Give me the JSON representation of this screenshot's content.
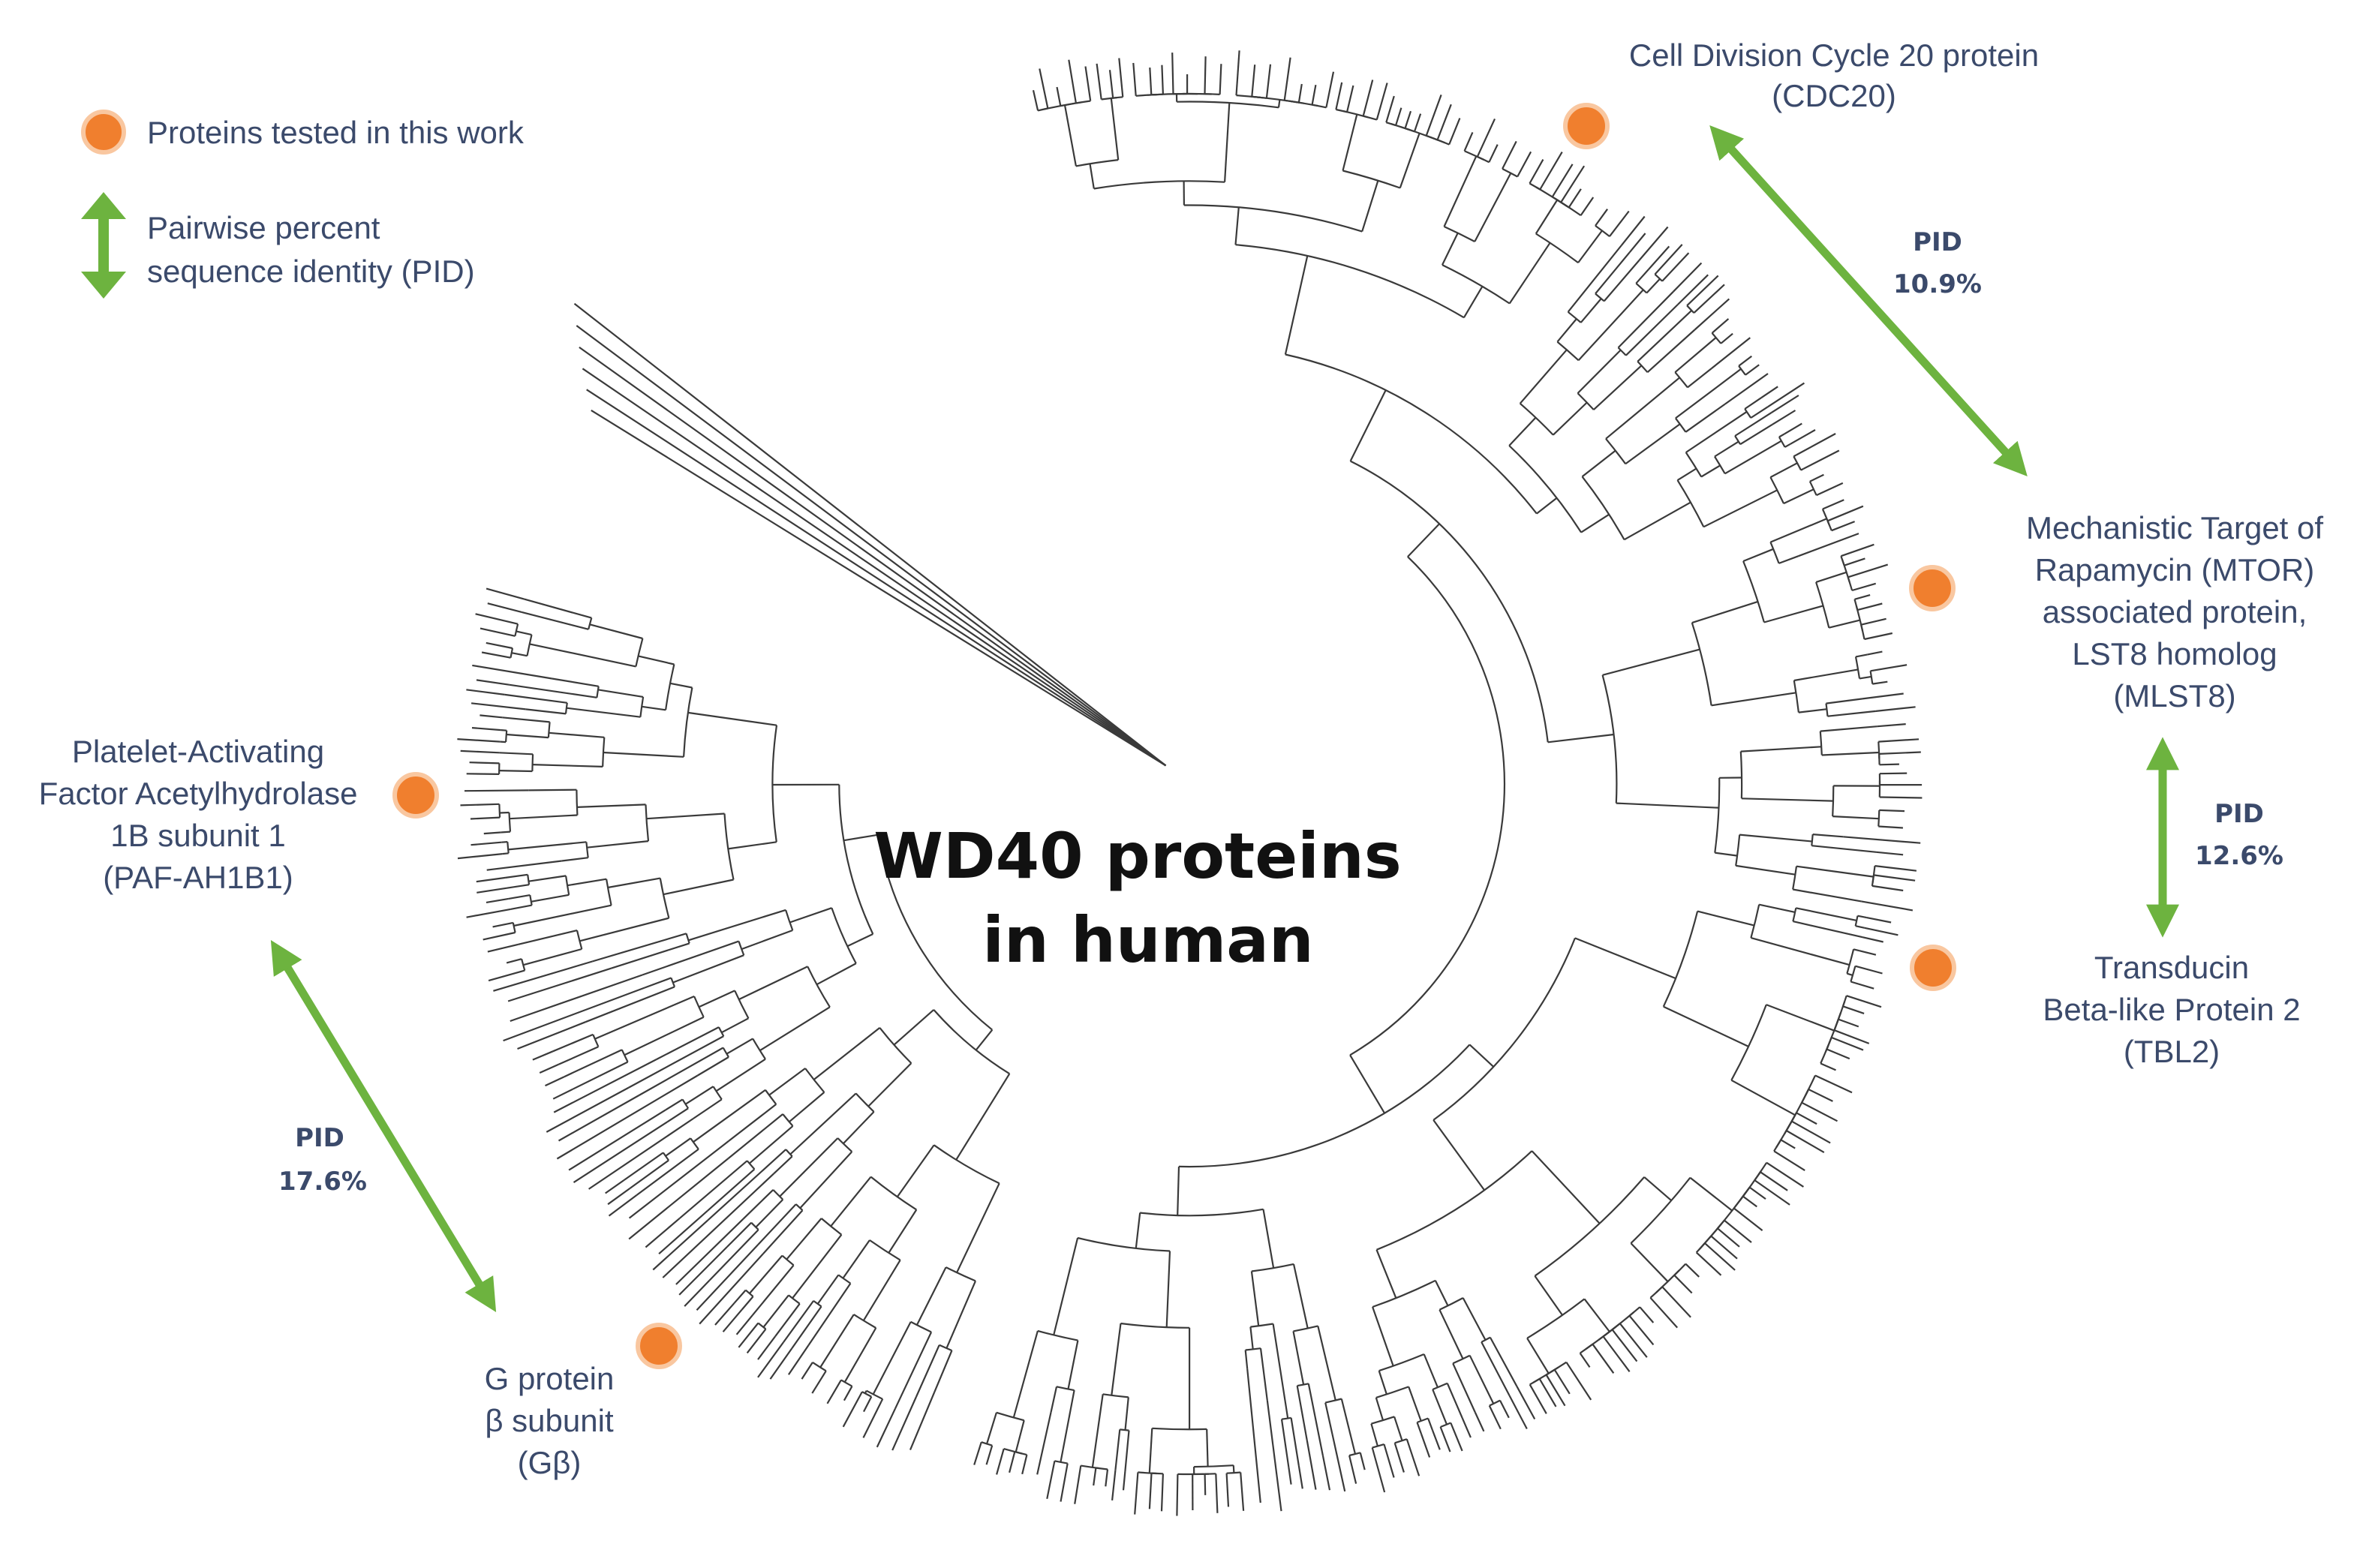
{
  "title": {
    "line1": "WD40 proteins",
    "line2": "in human"
  },
  "legend": {
    "tested_label": "Proteins tested in this work",
    "pid_label_line1": "Pairwise percent",
    "pid_label_line2": "sequence identity (PID)"
  },
  "proteins": {
    "cdc20": {
      "line1": "Cell Division Cycle 20 protein",
      "line2": "(CDC20)"
    },
    "mlst8": {
      "line1": "Mechanistic Target of",
      "line2": "Rapamycin (MTOR)",
      "line3": "associated protein,",
      "line4": "LST8 homolog",
      "line5": "(MLST8)"
    },
    "tbl2": {
      "line1": "Transducin",
      "line2": "Beta-like Protein 2",
      "line3": "(TBL2)"
    },
    "pafah1b1": {
      "line1": "Platelet-Activating",
      "line2": "Factor Acetylhydrolase",
      "line3": "1B subunit 1",
      "line4": "(PAF-AH1B1)"
    },
    "gbeta": {
      "line1": "G protein",
      "line2": "β subunit",
      "line3": "(Gβ)"
    }
  },
  "pid_pairs": {
    "cdc20_mlst8": {
      "label": "PID",
      "value": "10.9%"
    },
    "mlst8_tbl2": {
      "label": "PID",
      "value": "12.6%"
    },
    "pafah1b1_gbeta": {
      "label": "PID",
      "value": "17.6%"
    }
  },
  "colors": {
    "marker": "#f07f2e",
    "marker_ring": "#f9c7a0",
    "arrow": "#6db33f",
    "text": "#3b4a6b",
    "tree": "#3a3a3a"
  }
}
